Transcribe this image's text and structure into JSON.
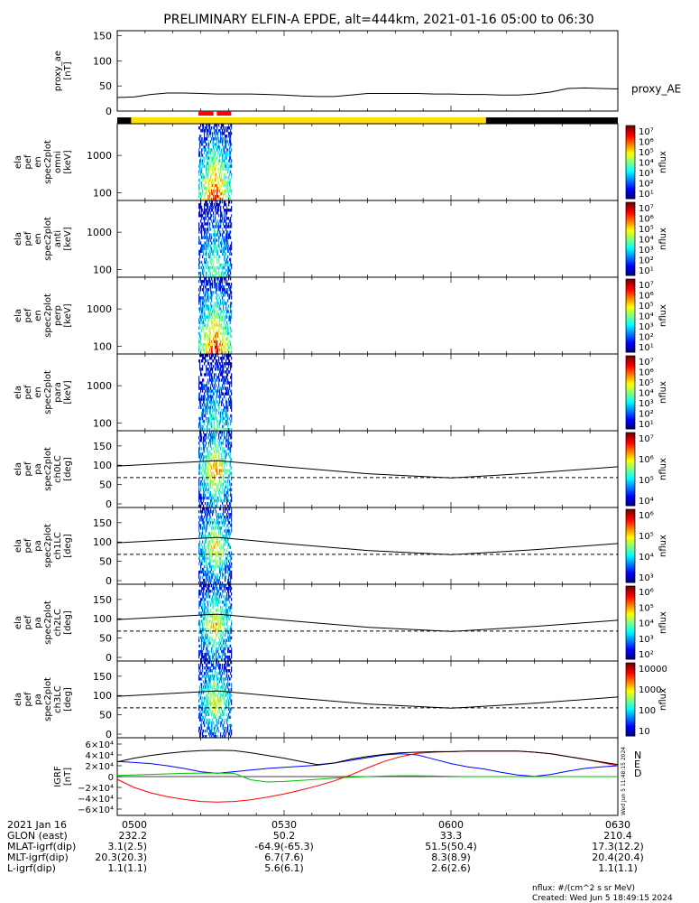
{
  "title": "PRELIMINARY ELFIN-A EPDE, alt=444km, 2021-01-16 05:00 to 06:30",
  "created": "Created: Wed Jun  5 18:49:15 2024",
  "flux_units": "nflux: #/(cm^2 s sr MeV)",
  "side_stamp": "Wed Jun  5 11:48:15 2024",
  "colors": {
    "bar_black": "#000000",
    "bar_yellow": "#ffe000",
    "bar_red": "#ff0000",
    "igrf_n": "#0000ff",
    "igrf_e": "#ff0000",
    "igrf_d": "#00c000",
    "igrf_total": "#000000"
  },
  "chart_data": [
    {
      "id": "proxy_ae",
      "type": "line",
      "ylabel": [
        "proxy_ae",
        "[nT]"
      ],
      "yticks": [
        "0",
        "50",
        "100",
        "150"
      ],
      "ylim": [
        0,
        160
      ],
      "legend": "proxy_AE",
      "x": [
        0,
        3,
        6,
        9,
        12,
        15,
        18,
        21,
        24,
        27,
        30,
        33,
        36,
        39,
        42,
        45,
        48,
        51,
        54,
        57,
        60,
        63,
        66,
        69,
        72,
        75,
        78,
        81,
        84,
        87,
        90
      ],
      "y": [
        27,
        28,
        33,
        36,
        36,
        35,
        34,
        34,
        34,
        33,
        32,
        30,
        29,
        29,
        32,
        35,
        35,
        35,
        35,
        34,
        34,
        33,
        33,
        32,
        32,
        34,
        38,
        45,
        46,
        45,
        44
      ]
    },
    {
      "id": "science_zones",
      "type": "bar",
      "segments": [
        {
          "start": 0,
          "end": 2.5,
          "color": "black"
        },
        {
          "start": 2.5,
          "end": 66.3,
          "color": "yellow"
        },
        {
          "start": 66.3,
          "end": 90,
          "color": "black"
        }
      ],
      "red_marks": [
        [
          14.6,
          17.3
        ],
        [
          17.9,
          20.5
        ]
      ]
    },
    {
      "id": "omni",
      "type": "heatmap",
      "ylabel": [
        "ela",
        "pef",
        "en",
        "spec2plot",
        "omni",
        "[keV]"
      ],
      "yticks": [
        "100",
        "1000"
      ],
      "scale": "log",
      "ylim": [
        63,
        7000
      ],
      "colorbar": {
        "label": "nflux",
        "ticks": [
          "10¹",
          "10²",
          "10³",
          "10⁴",
          "10⁵",
          "10⁶",
          "10⁷"
        ]
      },
      "burst": {
        "start": 14.6,
        "end": 20.6,
        "intensity": 0.95
      }
    },
    {
      "id": "anti",
      "type": "heatmap",
      "ylabel": [
        "ela",
        "pef",
        "en",
        "spec2plot",
        "anti",
        "[keV]"
      ],
      "yticks": [
        "100",
        "1000"
      ],
      "scale": "log",
      "ylim": [
        63,
        7000
      ],
      "colorbar": {
        "label": "nflux",
        "ticks": [
          "10¹",
          "10²",
          "10³",
          "10⁴",
          "10⁵",
          "10⁶",
          "10⁷"
        ]
      },
      "burst": {
        "start": 14.6,
        "end": 20.6,
        "intensity": 0.55
      }
    },
    {
      "id": "perp",
      "type": "heatmap",
      "ylabel": [
        "ela",
        "pef",
        "en",
        "spec2plot",
        "perp",
        "[keV]"
      ],
      "yticks": [
        "100",
        "1000"
      ],
      "scale": "log",
      "ylim": [
        63,
        7000
      ],
      "colorbar": {
        "label": "nflux",
        "ticks": [
          "10¹",
          "10²",
          "10³",
          "10⁴",
          "10⁵",
          "10⁶",
          "10⁷"
        ]
      },
      "burst": {
        "start": 14.6,
        "end": 20.6,
        "intensity": 0.95
      }
    },
    {
      "id": "para",
      "type": "heatmap",
      "ylabel": [
        "ela",
        "pef",
        "en",
        "spec2plot",
        "para",
        "[keV]"
      ],
      "yticks": [
        "100",
        "1000"
      ],
      "scale": "log",
      "ylim": [
        63,
        7000
      ],
      "colorbar": {
        "label": "nflux",
        "ticks": [
          "10¹",
          "10²",
          "10³",
          "10⁴",
          "10⁵",
          "10⁶",
          "10⁷"
        ]
      },
      "burst": {
        "start": 14.6,
        "end": 20.6,
        "intensity": 0.5
      }
    },
    {
      "id": "ch0LC",
      "type": "heatmap",
      "ylabel": [
        "ela",
        "pef",
        "pa",
        "spec2plot",
        "ch0LC",
        "[deg]"
      ],
      "yticks": [
        "0",
        "50",
        "100",
        "150"
      ],
      "scale": "linear",
      "ylim": [
        0,
        180
      ],
      "colorbar": {
        "label": "nflux",
        "ticks": [
          "10⁴",
          "10⁵",
          "10⁶",
          "10⁷"
        ]
      },
      "burst": {
        "start": 14.6,
        "end": 20.6,
        "intensity": 0.8
      },
      "solid_line": [
        [
          0,
          98
        ],
        [
          18,
          112
        ],
        [
          30,
          96
        ],
        [
          45,
          78
        ],
        [
          60,
          67
        ],
        [
          75,
          80
        ],
        [
          90,
          96
        ]
      ],
      "dashed_y": 68
    },
    {
      "id": "ch1LC",
      "type": "heatmap",
      "ylabel": [
        "ela",
        "pef",
        "pa",
        "spec2plot",
        "ch1LC",
        "[deg]"
      ],
      "yticks": [
        "0",
        "50",
        "100",
        "150"
      ],
      "scale": "linear",
      "ylim": [
        0,
        180
      ],
      "colorbar": {
        "label": "nflux",
        "ticks": [
          "10³",
          "10⁴",
          "10⁵",
          "10⁶"
        ]
      },
      "burst": {
        "start": 14.6,
        "end": 20.6,
        "intensity": 0.7
      },
      "solid_line": [
        [
          0,
          98
        ],
        [
          18,
          112
        ],
        [
          30,
          96
        ],
        [
          45,
          78
        ],
        [
          60,
          67
        ],
        [
          75,
          80
        ],
        [
          90,
          96
        ]
      ],
      "dashed_y": 68
    },
    {
      "id": "ch2LC",
      "type": "heatmap",
      "ylabel": [
        "ela",
        "pef",
        "pa",
        "spec2plot",
        "ch2LC",
        "[deg]"
      ],
      "yticks": [
        "0",
        "50",
        "100",
        "150"
      ],
      "scale": "linear",
      "ylim": [
        0,
        180
      ],
      "colorbar": {
        "label": "nflux",
        "ticks": [
          "10²",
          "10³",
          "10⁴",
          "10⁵",
          "10⁶"
        ]
      },
      "burst": {
        "start": 14.6,
        "end": 20.6,
        "intensity": 0.7
      },
      "solid_line": [
        [
          0,
          98
        ],
        [
          18,
          112
        ],
        [
          30,
          96
        ],
        [
          45,
          78
        ],
        [
          60,
          67
        ],
        [
          75,
          80
        ],
        [
          90,
          96
        ]
      ],
      "dashed_y": 68
    },
    {
      "id": "ch3LC",
      "type": "heatmap",
      "ylabel": [
        "ela",
        "pef",
        "pa",
        "spec2plot",
        "ch3LC",
        "[deg]"
      ],
      "yticks": [
        "0",
        "50",
        "100",
        "150"
      ],
      "scale": "linear",
      "ylim": [
        0,
        180
      ],
      "colorbar": {
        "label": "nflux",
        "ticks": [
          "10",
          "100",
          "1000",
          "10000"
        ]
      },
      "burst": {
        "start": 14.6,
        "end": 20.6,
        "intensity": 0.65
      },
      "solid_line": [
        [
          0,
          98
        ],
        [
          18,
          112
        ],
        [
          30,
          96
        ],
        [
          45,
          78
        ],
        [
          60,
          67
        ],
        [
          75,
          80
        ],
        [
          90,
          96
        ]
      ],
      "dashed_y": 68
    },
    {
      "id": "igrf",
      "type": "line",
      "ylabel": [
        "IGRF",
        "[nT]"
      ],
      "yticks": [
        "−6×10⁴",
        "−4×10⁴",
        "−2×10⁴",
        "0",
        "2×10⁴",
        "4×10⁴",
        "6×10⁴"
      ],
      "ylim": [
        -65000,
        65000
      ],
      "x": [
        0,
        3,
        6,
        9,
        12,
        15,
        18,
        21,
        24,
        27,
        30,
        33,
        36,
        39,
        42,
        45,
        48,
        51,
        54,
        57,
        60,
        63,
        66,
        69,
        72,
        75,
        78,
        81,
        84,
        87,
        90
      ],
      "series": [
        {
          "name": "N",
          "color": "blue",
          "values": [
            28000,
            26000,
            24000,
            20000,
            15000,
            9000,
            6000,
            9000,
            12000,
            15000,
            17000,
            19000,
            21000,
            25000,
            30000,
            35000,
            40000,
            42000,
            40000,
            32000,
            24000,
            18000,
            14000,
            8000,
            3000,
            500,
            4000,
            10000,
            15000,
            18000,
            20000
          ]
        },
        {
          "name": "E",
          "color": "red",
          "values": [
            -5000,
            -20000,
            -30000,
            -37000,
            -42000,
            -46000,
            -47000,
            -46000,
            -43000,
            -38000,
            -32000,
            -25000,
            -17000,
            -8000,
            3000,
            16000,
            28000,
            37000,
            43000,
            45000,
            46000,
            47000,
            47000,
            47000,
            47000,
            45000,
            42000,
            37000,
            32000,
            26000,
            20000
          ]
        },
        {
          "name": "D",
          "color": "green",
          "values": [
            2000,
            3000,
            4000,
            5000,
            6000,
            6500,
            6500,
            6000,
            -6000,
            -10000,
            -9000,
            -7000,
            -5000,
            -3000,
            -1000,
            0,
            1000,
            1500,
            1500,
            1000,
            500,
            0,
            0,
            0,
            0,
            0,
            0,
            0,
            0,
            0,
            0
          ]
        },
        {
          "name": "total",
          "color": "black",
          "values": [
            27000,
            34000,
            39000,
            43000,
            46000,
            48000,
            48500,
            48000,
            44000,
            39000,
            34000,
            28000,
            22000,
            25000,
            32000,
            37000,
            41000,
            44000,
            45000,
            46000,
            46000,
            47000,
            47000,
            47000,
            47000,
            45000,
            42000,
            37000,
            32000,
            27000,
            22000
          ]
        }
      ]
    }
  ],
  "xaxis": {
    "rows": [
      {
        "label": "2021 Jan 16",
        "values": [
          "0500",
          "0530",
          "0600",
          "0630"
        ]
      },
      {
        "label": "GLON (east)",
        "values": [
          "232.2",
          "50.2",
          "33.3",
          "210.4"
        ]
      },
      {
        "label": "MLAT-igrf(dip)",
        "values": [
          "3.1(2.5)",
          "-64.9(-65.3)",
          "51.5(50.4)",
          "17.3(12.2)"
        ]
      },
      {
        "label": "MLT-igrf(dip)",
        "values": [
          "20.3(20.3)",
          "6.7(7.6)",
          "8.3(8.9)",
          "20.4(20.4)"
        ]
      },
      {
        "label": "L-igrf(dip)",
        "values": [
          "1.1(1.1)",
          "5.6(6.1)",
          "2.6(2.6)",
          "1.1(1.1)"
        ]
      }
    ]
  }
}
